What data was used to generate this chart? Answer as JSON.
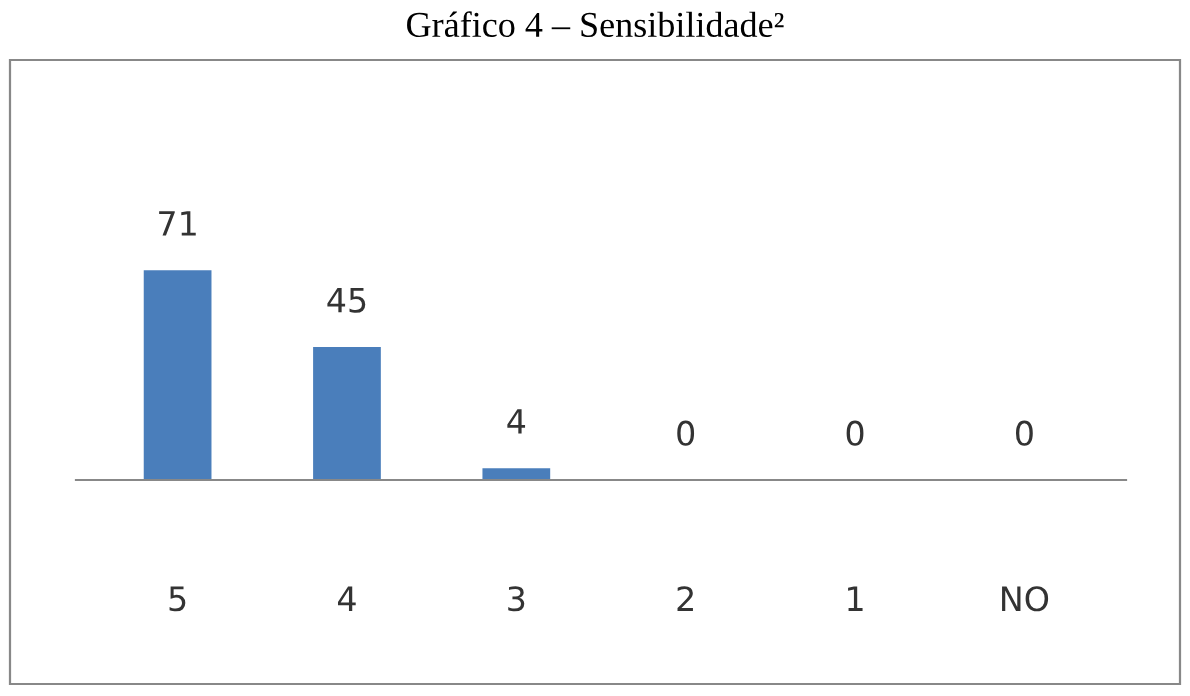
{
  "chart_data": {
    "type": "bar",
    "title": "Gráfico 4 – Sensibilidade²",
    "categories": [
      "5",
      "4",
      "3",
      "2",
      "1",
      "NO"
    ],
    "values": [
      71,
      45,
      4,
      0,
      0,
      0
    ],
    "color": "#4a7ebb",
    "data_labels": true,
    "grid": false,
    "legend": false
  }
}
